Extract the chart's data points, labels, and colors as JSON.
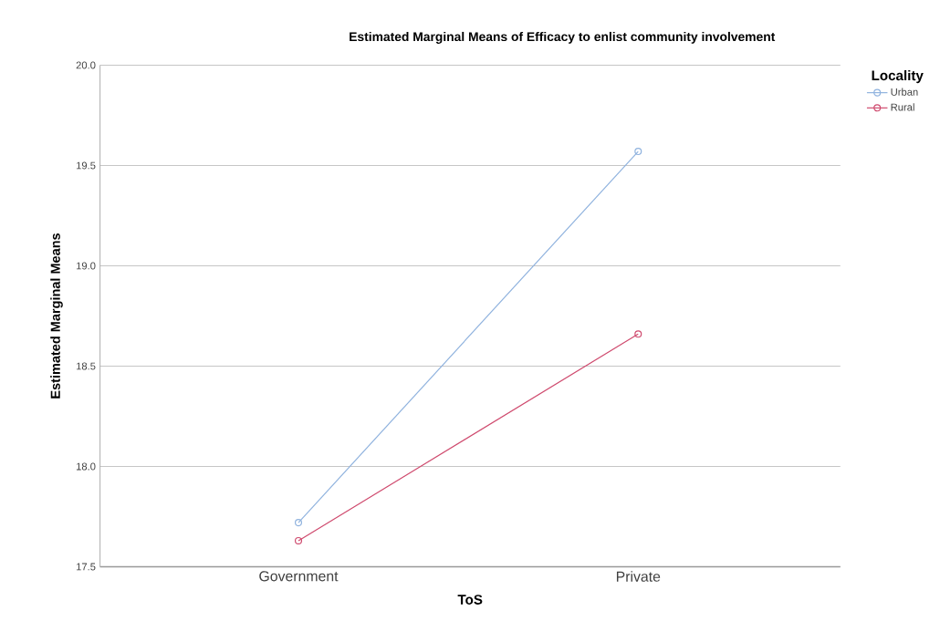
{
  "chart_data": {
    "type": "line",
    "title": "Estimated Marginal Means of Efficacy to enlist community involvement",
    "xlabel": "ToS",
    "ylabel": "Estimated Marginal Means",
    "legend_title": "Locality",
    "categories": [
      "Government",
      "Private"
    ],
    "series": [
      {
        "name": "Urban",
        "color": "#8fb2de",
        "values": [
          17.72,
          19.57
        ]
      },
      {
        "name": "Rural",
        "color": "#cf4a6e",
        "values": [
          17.63,
          18.66
        ]
      }
    ],
    "ylim": [
      17.5,
      20.0
    ],
    "yticks": [
      {
        "value": 17.5,
        "label": "17.5"
      },
      {
        "value": 18.0,
        "label": "18.0"
      },
      {
        "value": 18.5,
        "label": "18.5"
      },
      {
        "value": 19.0,
        "label": "19.0"
      },
      {
        "value": 19.5,
        "label": "19.5"
      },
      {
        "value": 20.0,
        "label": "20.0"
      }
    ],
    "grid": "y",
    "legend": "top right",
    "marker": "circle",
    "line_style": "solid"
  }
}
